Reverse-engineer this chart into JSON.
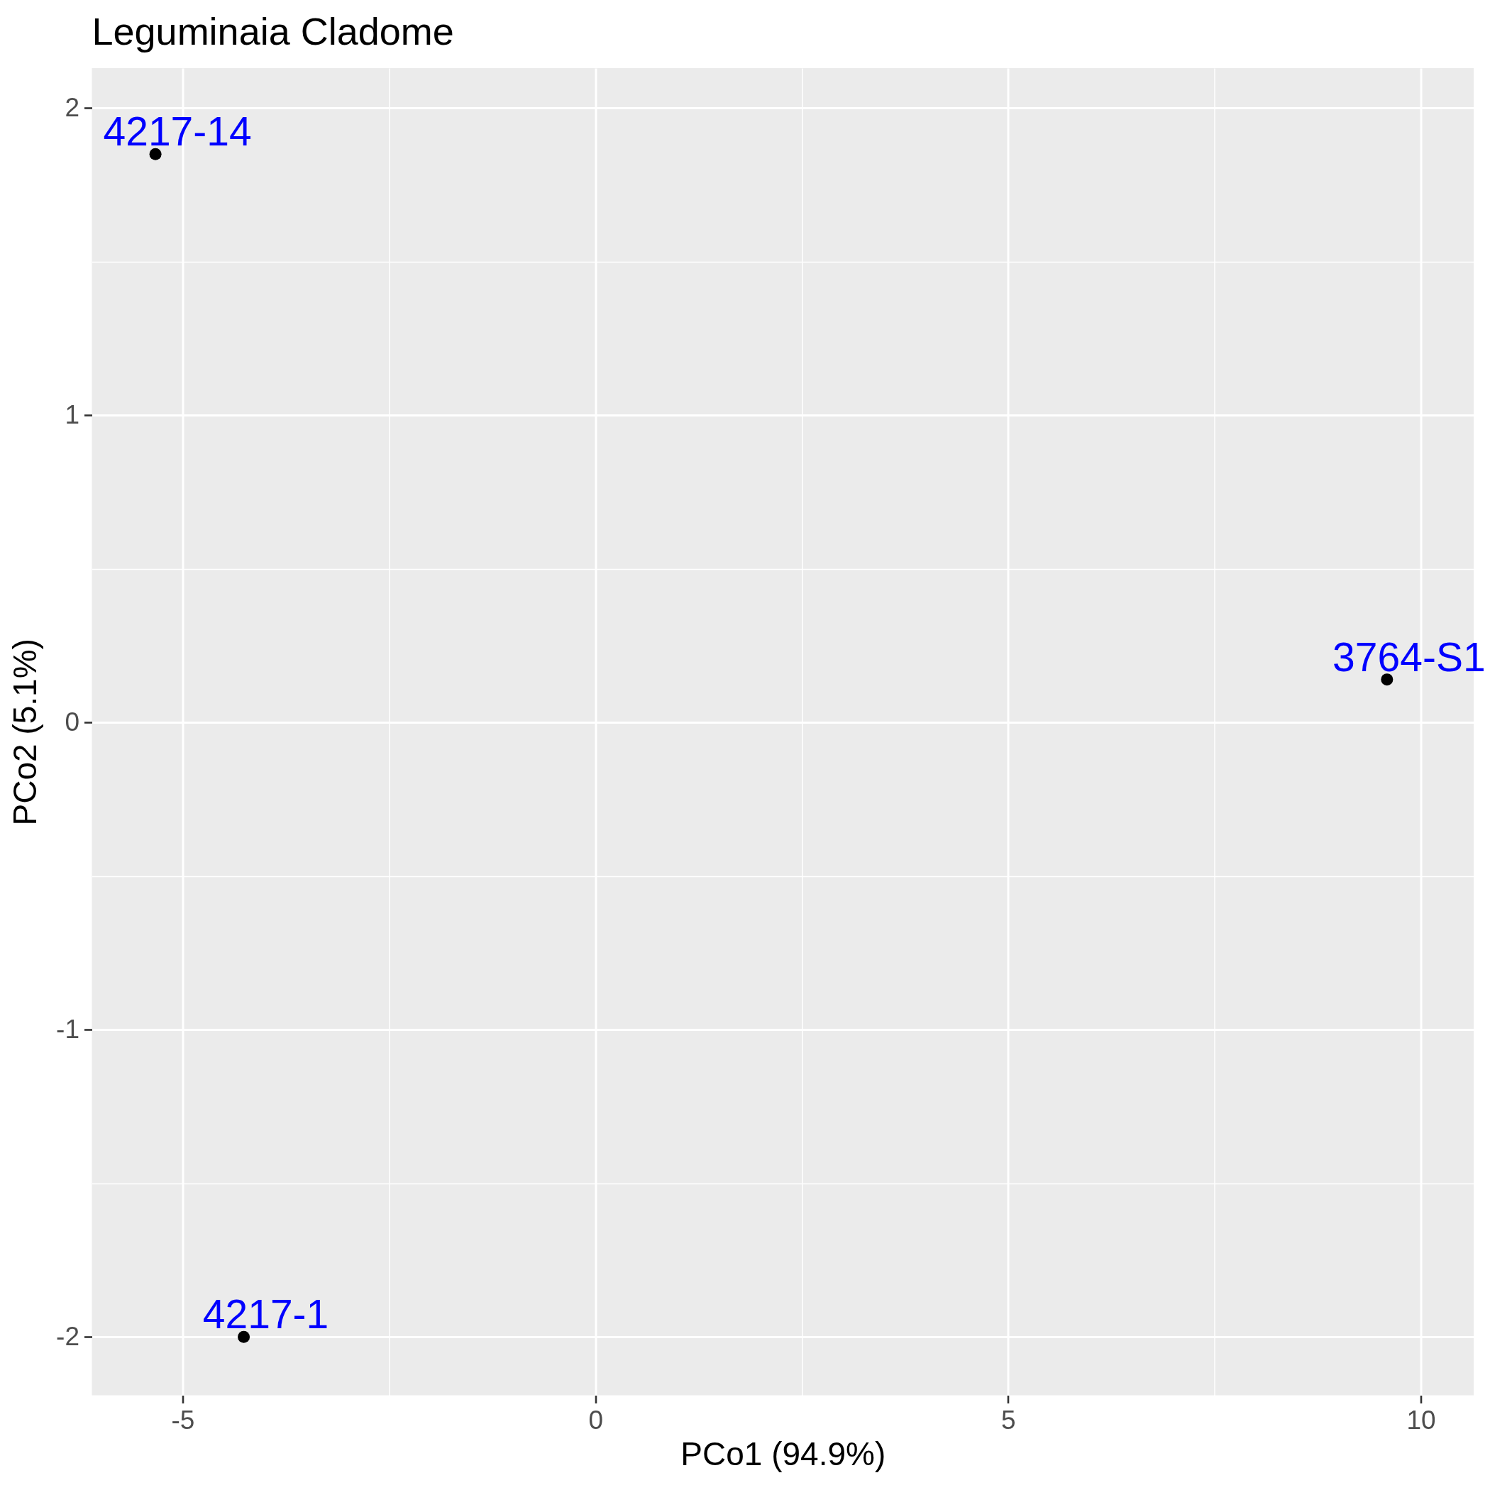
{
  "chart_data": {
    "type": "scatter",
    "title": "Leguminaia Cladome",
    "xlabel": "PCo1 (94.9%)",
    "ylabel": "PCo2 (5.1%)",
    "x": [
      -5.33,
      -4.26,
      9.59
    ],
    "values": [
      1.85,
      -2.0,
      0.14
    ],
    "color": "#000000",
    "marker": "circle",
    "annotations": [
      {
        "text": "4217-14",
        "x": -5.33,
        "y": 1.85
      },
      {
        "text": "4217-1",
        "x": -4.26,
        "y": -2.0
      },
      {
        "text": "3764-S1",
        "x": 9.59,
        "y": 0.14
      }
    ],
    "xlim": [
      -6.1,
      10.64
    ],
    "ylim": [
      -2.19,
      2.13
    ],
    "xticks": [
      -5,
      0,
      5,
      10
    ],
    "yticks": [
      -2,
      -1,
      0,
      1,
      2
    ],
    "grid": true
  }
}
